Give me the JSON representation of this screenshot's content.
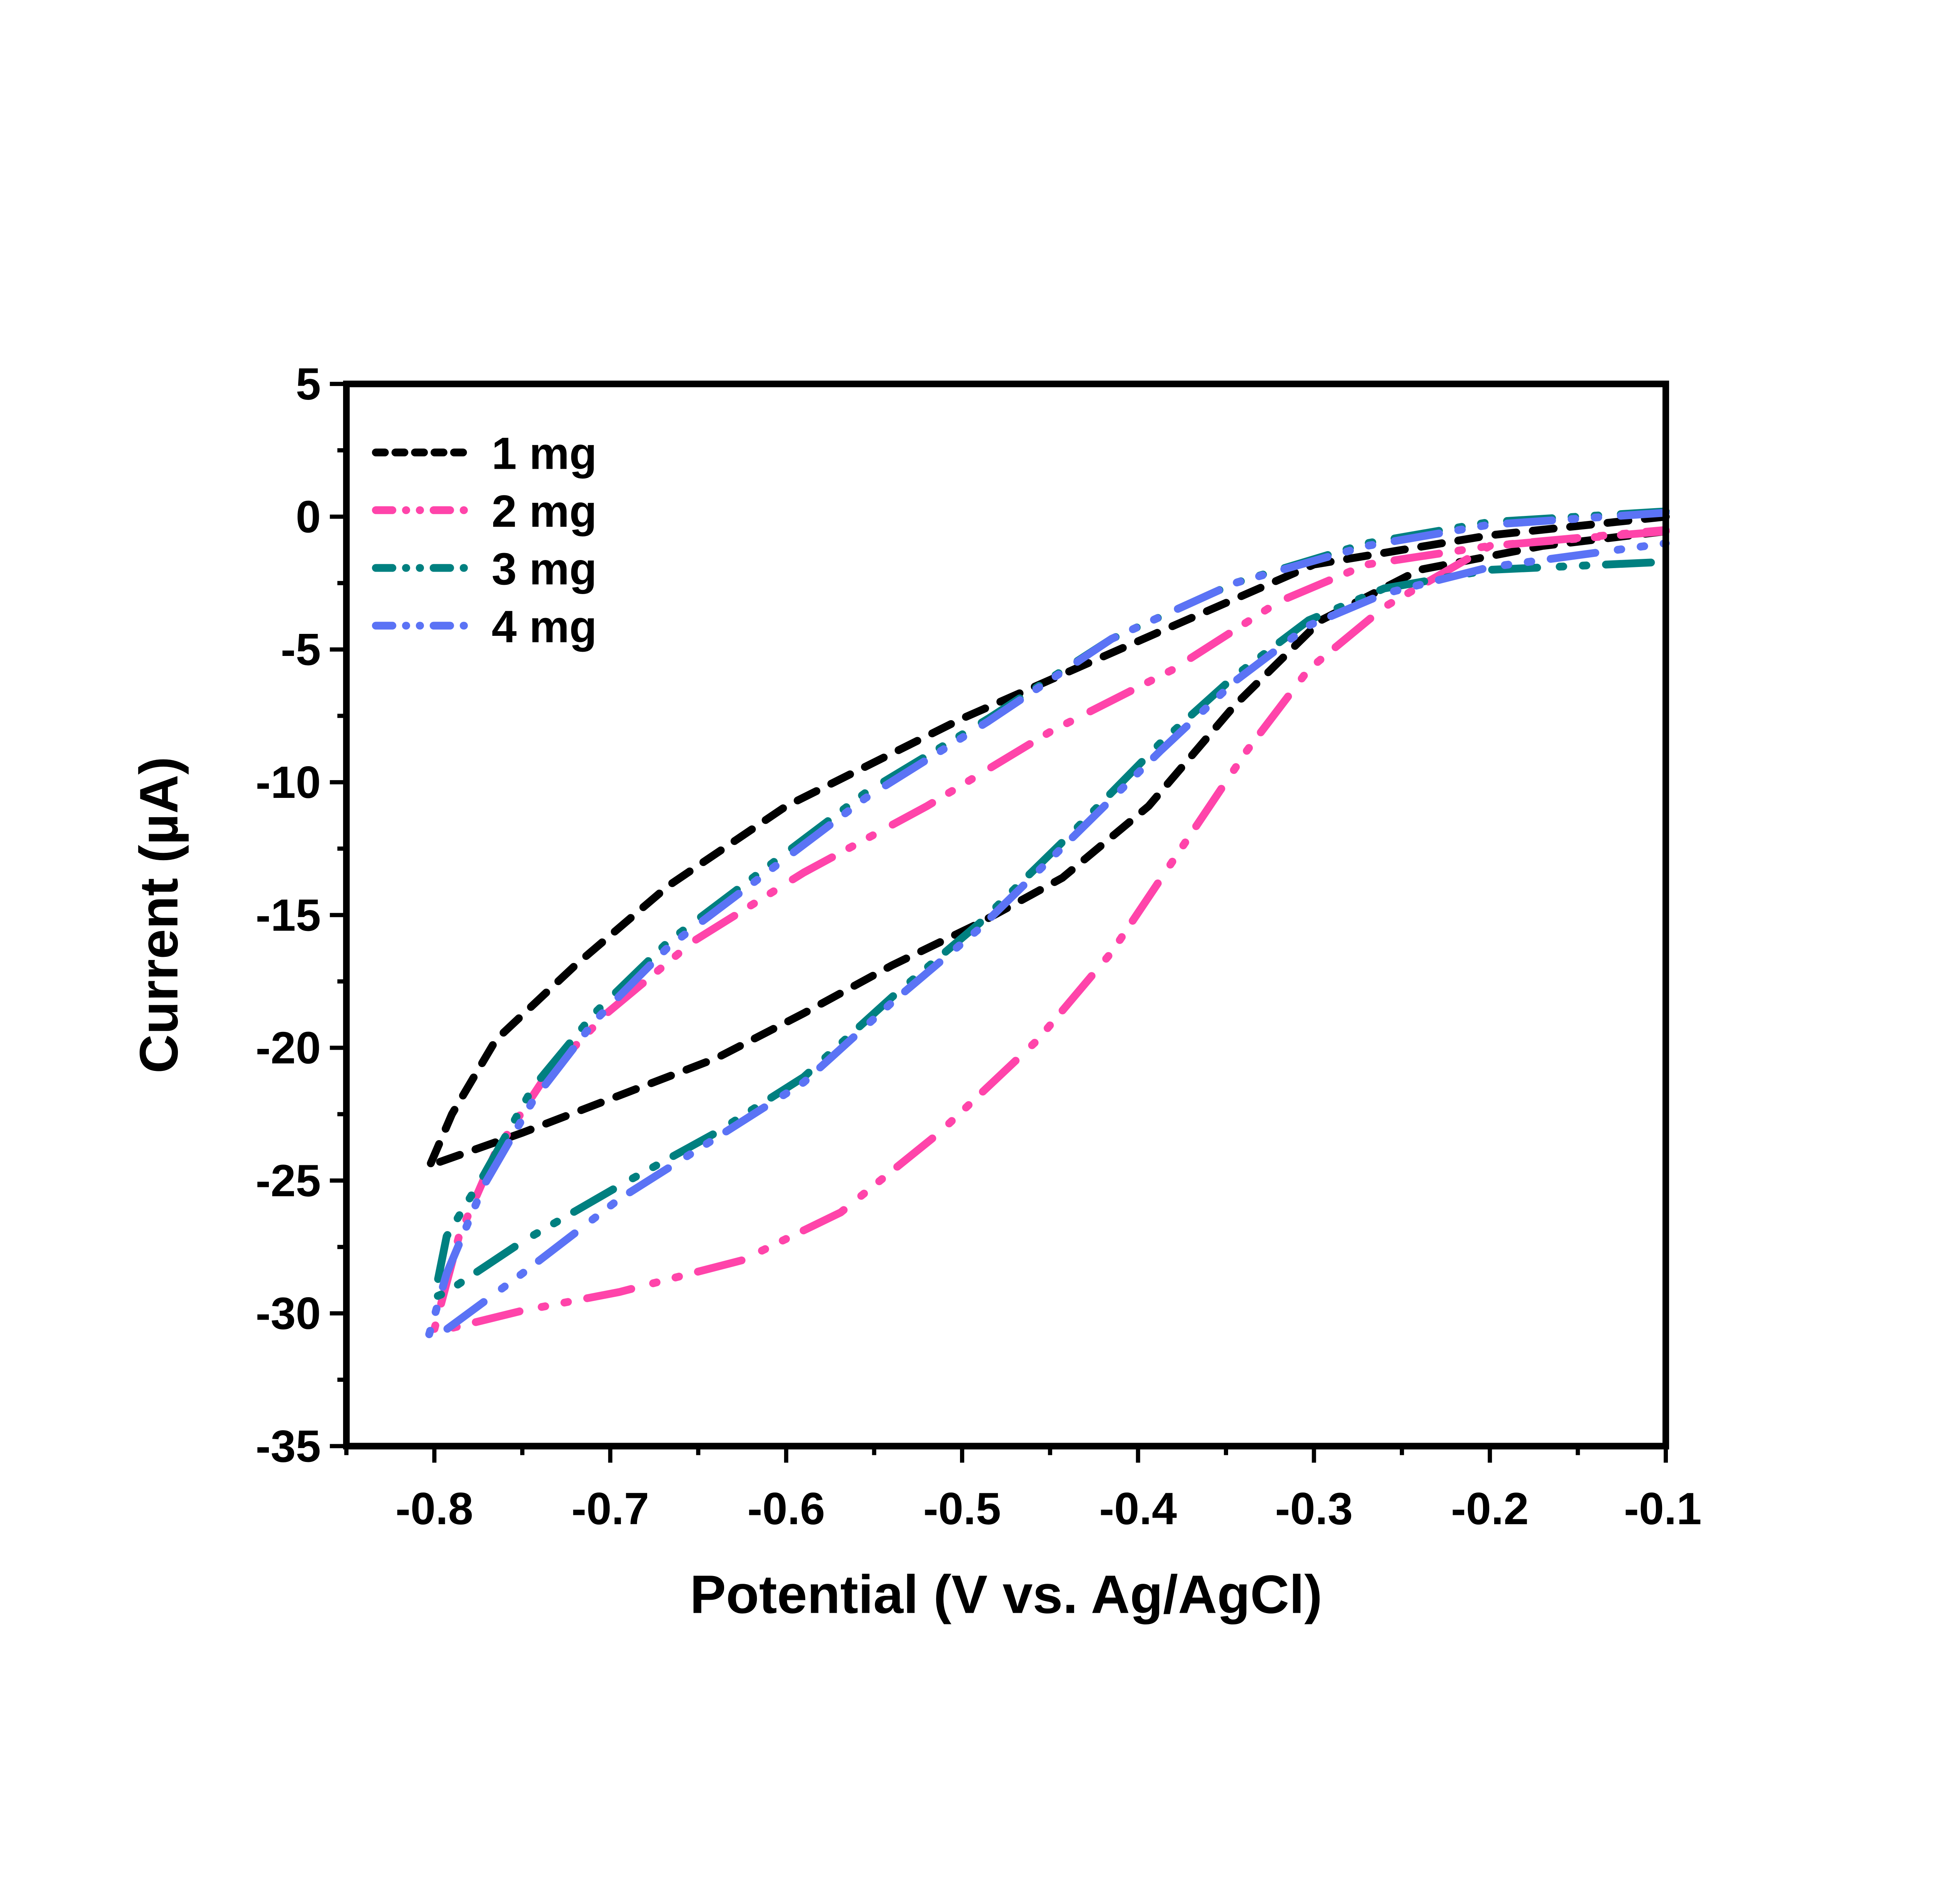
{
  "chart_data": {
    "type": "line",
    "title": "",
    "xlabel": "Potential (V vs. Ag/AgCl)",
    "ylabel": "Current (µA)",
    "xlim": [
      -0.85,
      -0.1
    ],
    "ylim": [
      -35,
      5
    ],
    "xticks": [
      -0.8,
      -0.7,
      -0.6,
      -0.5,
      -0.4,
      -0.3,
      -0.2,
      -0.1
    ],
    "xtick_labels": [
      "-0.8",
      "-0.7",
      "-0.6",
      "-0.5",
      "-0.4",
      "-0.3",
      "-0.2",
      "-0.1"
    ],
    "yticks": [
      5,
      0,
      -5,
      -10,
      -15,
      -20,
      -25,
      -30,
      -35
    ],
    "ytick_labels": [
      "5",
      "0",
      "-5",
      "-10",
      "-15",
      "-20",
      "-25",
      "-30",
      "-35"
    ],
    "grid": false,
    "legend_position": "top-left",
    "series": [
      {
        "name": "1 mg",
        "color": "#000000",
        "dash": "dash",
        "x": [
          -0.1,
          -0.2,
          -0.3,
          -0.39,
          -0.5,
          -0.6,
          -0.667,
          -0.72,
          -0.765,
          -0.79,
          -0.803,
          -0.797,
          -0.75,
          -0.695,
          -0.64,
          -0.59,
          -0.54,
          -0.49,
          -0.443,
          -0.394,
          -0.345,
          -0.296,
          -0.24,
          -0.17,
          -0.1
        ],
        "y": [
          0,
          -0.7,
          -1.8,
          -4.4,
          -7.6,
          -10.9,
          -13.9,
          -16.9,
          -19.7,
          -22.5,
          -24.5,
          -24.3,
          -23.2,
          -21.8,
          -20.4,
          -18.7,
          -16.9,
          -15.3,
          -13.6,
          -10.9,
          -7.1,
          -3.9,
          -2.0,
          -1.1,
          -0.55
        ]
      },
      {
        "name": "2 mg",
        "color": "#FF44AA",
        "dash": "dash-dot-dot",
        "x": [
          -0.1,
          -0.2,
          -0.27,
          -0.32,
          -0.38,
          -0.45,
          -0.52,
          -0.59,
          -0.653,
          -0.702,
          -0.737,
          -0.765,
          -0.786,
          -0.8,
          -0.793,
          -0.75,
          -0.695,
          -0.625,
          -0.569,
          -0.513,
          -0.457,
          -0.415,
          -0.373,
          -0.338,
          -0.303,
          -0.26,
          -0.2,
          -0.1
        ],
        "y": [
          -0.55,
          -1.1,
          -1.8,
          -3.2,
          -5.75,
          -8.1,
          -10.9,
          -13.4,
          -16.0,
          -18.7,
          -21.1,
          -23.9,
          -27.1,
          -30.6,
          -30.6,
          -29.9,
          -29.2,
          -28.0,
          -26.2,
          -23.2,
          -19.7,
          -16.4,
          -12.25,
          -8.8,
          -5.75,
          -3.4,
          -1.1,
          -0.5
        ]
      },
      {
        "name": "3 mg",
        "color": "#008080",
        "dash": "dash-dot-dot",
        "x": [
          -0.1,
          -0.2,
          -0.27,
          -0.345,
          -0.415,
          -0.485,
          -0.555,
          -0.611,
          -0.667,
          -0.709,
          -0.744,
          -0.772,
          -0.793,
          -0.8,
          -0.793,
          -0.75,
          -0.695,
          -0.64,
          -0.59,
          -0.54,
          -0.49,
          -0.436,
          -0.387,
          -0.345,
          -0.303,
          -0.26,
          -0.2,
          -0.1
        ],
        "y": [
          0.2,
          -0.2,
          -1.0,
          -2.5,
          -4.6,
          -7.6,
          -10.4,
          -13.2,
          -16.0,
          -18.7,
          -21.5,
          -24.8,
          -27.1,
          -29.4,
          -29.2,
          -27.3,
          -25.2,
          -23.2,
          -21.1,
          -18.1,
          -15.3,
          -11.8,
          -8.5,
          -6.0,
          -3.9,
          -2.7,
          -2.0,
          -1.7
        ]
      },
      {
        "name": "4 mg",
        "color": "#5B73F5",
        "dash": "dash-dot-dot",
        "x": [
          -0.1,
          -0.2,
          -0.27,
          -0.345,
          -0.415,
          -0.485,
          -0.555,
          -0.611,
          -0.667,
          -0.709,
          -0.744,
          -0.772,
          -0.793,
          -0.803,
          -0.793,
          -0.75,
          -0.695,
          -0.64,
          -0.59,
          -0.54,
          -0.49,
          -0.436,
          -0.387,
          -0.345,
          -0.303,
          -0.26,
          -0.2,
          -0.1
        ],
        "y": [
          0.15,
          -0.3,
          -1.1,
          -2.5,
          -4.6,
          -7.7,
          -10.6,
          -13.4,
          -16.2,
          -19.0,
          -22.0,
          -25.2,
          -28.5,
          -30.8,
          -30.6,
          -28.5,
          -25.7,
          -23.4,
          -21.3,
          -18.3,
          -15.5,
          -12.0,
          -8.8,
          -6.2,
          -4.1,
          -2.9,
          -1.9,
          -1.0
        ]
      }
    ]
  }
}
